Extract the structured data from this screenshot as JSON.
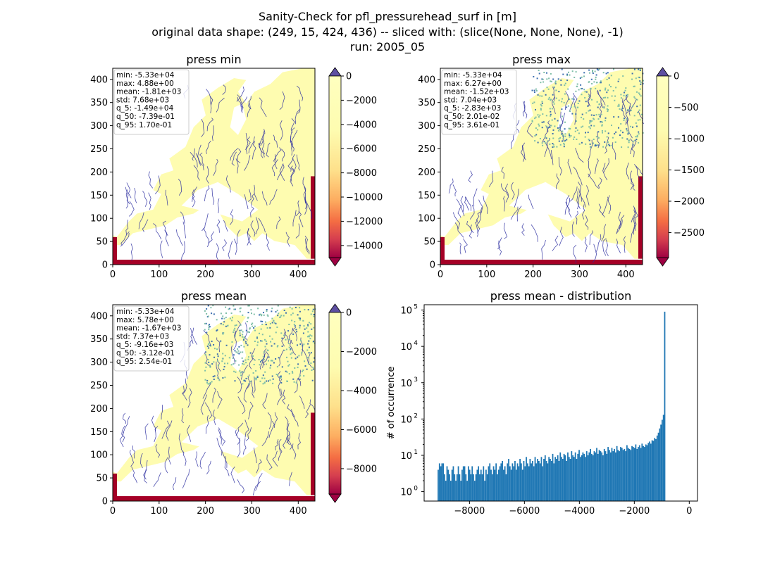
{
  "suptitle": {
    "line1": "Sanity-Check for pfl_pressurehead_surf in [m]",
    "line2": "original data shape: (249, 15, 424, 436) -- sliced with: (slice(None, None, None), -1)",
    "line3": "run: 2005_05"
  },
  "colors": {
    "land": "#fefcb0",
    "river": "#2b2ea0",
    "edge": "#a50026",
    "hist": "#1f77b4"
  },
  "chart_data": [
    {
      "type": "heatmap",
      "title": "press min",
      "xlim": [
        0,
        436
      ],
      "ylim": [
        0,
        424
      ],
      "xticks": [
        "0",
        "100",
        "200",
        "300",
        "400"
      ],
      "yticks": [
        "0",
        "50",
        "100",
        "150",
        "200",
        "250",
        "300",
        "350",
        "400"
      ],
      "colorbar": {
        "range": [
          -15000,
          0
        ],
        "ticks": [
          "0",
          "−2000",
          "−4000",
          "−6000",
          "−8000",
          "−10000",
          "−12000",
          "−14000"
        ],
        "tick_values": [
          0,
          -2000,
          -4000,
          -6000,
          -8000,
          -10000,
          -12000,
          -14000
        ],
        "extend": "both",
        "colormap": "Spectral"
      },
      "stats": [
        "min: -5.33e+04",
        "max: 4.88e+00",
        "mean: -1.81e+03",
        "std: 7.68e+03",
        "q_5: -1.49e+04",
        "q_50: -7.39e-01",
        "q_95: 1.70e-01"
      ]
    },
    {
      "type": "heatmap",
      "title": "press max",
      "xlim": [
        0,
        436
      ],
      "ylim": [
        0,
        424
      ],
      "xticks": [
        "0",
        "100",
        "200",
        "300",
        "400"
      ],
      "yticks": [
        "0",
        "50",
        "100",
        "150",
        "200",
        "250",
        "300",
        "350",
        "400"
      ],
      "colorbar": {
        "range": [
          -2900,
          0
        ],
        "ticks": [
          "0",
          "−500",
          "−1000",
          "−1500",
          "−2000",
          "−2500"
        ],
        "tick_values": [
          0,
          -500,
          -1000,
          -1500,
          -2000,
          -2500
        ],
        "extend": "both",
        "colormap": "Spectral"
      },
      "stats": [
        "min: -5.33e+04",
        "max: 6.27e+00",
        "mean: -1.52e+03",
        "std: 7.04e+03",
        "q_5: -2.83e+03",
        "q_50: 2.01e-02",
        "q_95: 3.61e-01"
      ]
    },
    {
      "type": "heatmap",
      "title": "press mean",
      "xlim": [
        0,
        436
      ],
      "ylim": [
        0,
        424
      ],
      "xticks": [
        "0",
        "100",
        "200",
        "300",
        "400"
      ],
      "yticks": [
        "0",
        "50",
        "100",
        "150",
        "200",
        "250",
        "300",
        "350",
        "400"
      ],
      "colorbar": {
        "range": [
          -9300,
          0
        ],
        "ticks": [
          "0",
          "−2000",
          "−4000",
          "−6000",
          "−8000"
        ],
        "tick_values": [
          0,
          -2000,
          -4000,
          -6000,
          -8000
        ],
        "extend": "both",
        "colormap": "Spectral"
      },
      "stats": [
        "min: -5.33e+04",
        "max: 5.78e+00",
        "mean: -1.67e+03",
        "std: 7.37e+03",
        "q_5: -9.16e+03",
        "q_50: -3.12e-01",
        "q_95: 2.54e-01"
      ]
    },
    {
      "type": "bar",
      "title": "press mean - distribution",
      "ylabel": "# of occurrence",
      "xlabel": "",
      "yscale": "log",
      "xlim": [
        -9650,
        300
      ],
      "ylim": [
        0.55,
        140000
      ],
      "xticks": [
        "−8000",
        "−6000",
        "−4000",
        "−2000",
        "0"
      ],
      "xtick_values": [
        -8000,
        -6000,
        -4000,
        -2000,
        0
      ],
      "yticks": [
        "10",
        "10",
        "10",
        "10",
        "10",
        "10"
      ],
      "ytick_exponents": [
        "0",
        "1",
        "2",
        "3",
        "4",
        "5"
      ],
      "ytick_values": [
        1,
        10,
        100,
        1000,
        10000,
        100000
      ],
      "bins": {
        "start": -9160,
        "width": 45.8
      },
      "values": [
        4,
        6,
        5,
        6,
        6,
        3,
        2,
        5,
        4,
        3,
        2,
        4,
        5,
        3,
        2,
        3,
        5,
        3,
        2,
        4,
        5,
        5,
        3,
        2,
        5,
        4,
        3,
        5,
        3,
        2,
        3,
        4,
        5,
        3,
        4,
        3,
        5,
        2,
        4,
        3,
        5,
        6,
        4,
        3,
        5,
        4,
        6,
        3,
        4,
        5,
        6,
        7,
        4,
        5,
        3,
        6,
        8,
        5,
        4,
        6,
        5,
        7,
        4,
        6,
        5,
        8,
        6,
        4,
        7,
        5,
        9,
        6,
        5,
        8,
        6,
        7,
        5,
        9,
        6,
        8,
        7,
        6,
        9,
        5,
        8,
        10,
        7,
        6,
        9,
        8,
        7,
        11,
        6,
        9,
        8,
        10,
        7,
        12,
        9,
        8,
        11,
        10,
        7,
        12,
        9,
        8,
        13,
        10,
        9,
        12,
        8,
        11,
        14,
        9,
        10,
        12,
        11,
        9,
        13,
        10,
        12,
        15,
        11,
        10,
        13,
        12,
        16,
        11,
        14,
        13,
        12,
        10,
        15,
        13,
        11,
        17,
        14,
        12,
        16,
        13,
        15,
        12,
        18,
        14,
        13,
        17,
        16,
        14,
        15,
        13,
        19,
        16,
        15,
        14,
        18,
        17,
        16,
        20,
        15,
        17,
        19,
        16,
        21,
        18,
        17,
        20,
        19,
        22,
        24,
        21,
        26,
        25,
        30,
        28,
        35,
        42,
        55,
        70,
        95,
        130,
        90000
      ]
    }
  ]
}
